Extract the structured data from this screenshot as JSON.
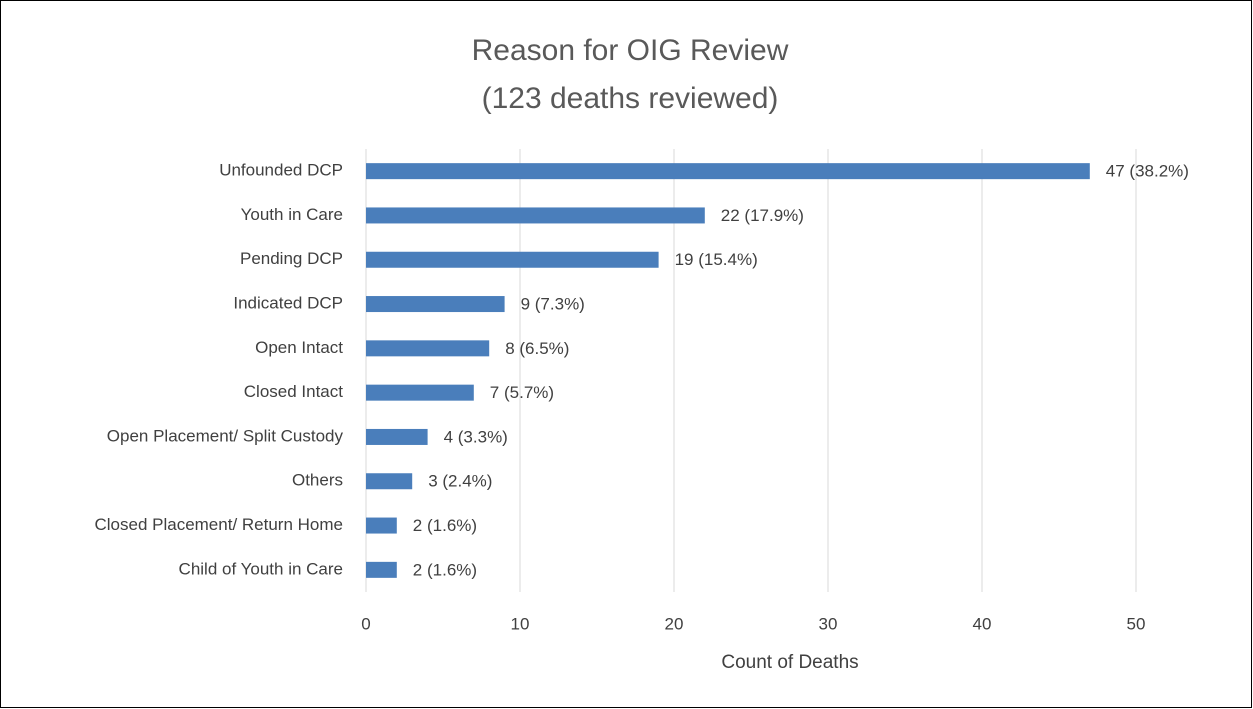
{
  "chart_data": {
    "type": "bar",
    "orientation": "horizontal",
    "title": "Reason for OIG Review",
    "subtitle": "(123 deaths reviewed)",
    "x_label": "Count of Deaths",
    "categories": [
      "Unfounded DCP",
      "Youth in Care",
      "Pending DCP",
      "Indicated DCP",
      "Open Intact",
      "Closed Intact",
      "Open Placement/ Split Custody",
      "Others",
      "Closed Placement/ Return Home",
      "Child of Youth in Care"
    ],
    "values": [
      47,
      22,
      19,
      9,
      8,
      7,
      4,
      3,
      2,
      2
    ],
    "value_labels": [
      "47 (38.2%)",
      "22 (17.9%)",
      "19 (15.4%)",
      "9 (7.3%)",
      "8 (6.5%)",
      "7 (5.7%)",
      "4 (3.3%)",
      "3 (2.4%)",
      "2 (1.6%)",
      "2 (1.6%)"
    ],
    "color": "#4a7ebb",
    "xlim": [
      0,
      50
    ],
    "xticks": [
      0,
      10,
      20,
      30,
      40,
      50
    ],
    "grid": true
  }
}
